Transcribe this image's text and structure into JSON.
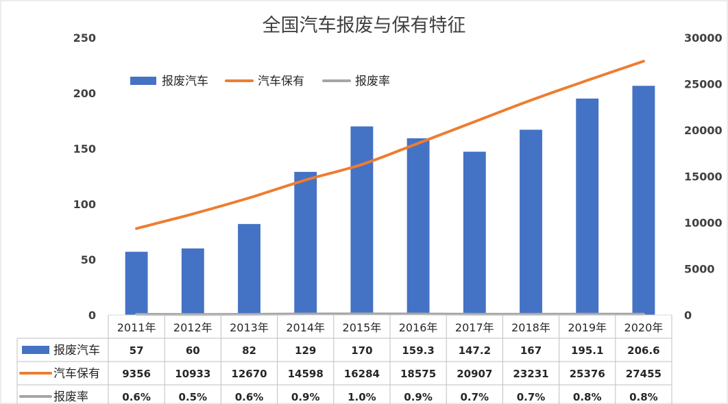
{
  "chart_data": {
    "type": "bar",
    "title": "全国汽车报废与保有特征",
    "categories": [
      "2011年",
      "2012年",
      "2013年",
      "2014年",
      "2015年",
      "2016年",
      "2017年",
      "2018年",
      "2019年",
      "2020年"
    ],
    "series": [
      {
        "name": "报废汽车",
        "kind": "bar",
        "axis": "left",
        "color": "#4472C4",
        "values": [
          57,
          60,
          82,
          129,
          170,
          159.3,
          147.2,
          167,
          195.1,
          206.6
        ],
        "labels": [
          "57",
          "60",
          "82",
          "129",
          "170",
          "159.3",
          "147.2",
          "167",
          "195.1",
          "206.6"
        ]
      },
      {
        "name": "汽车保有",
        "kind": "line",
        "axis": "right",
        "color": "#ED7D31",
        "values": [
          9356,
          10933,
          12670,
          14598,
          16284,
          18575,
          20907,
          23231,
          25376,
          27455
        ],
        "labels": [
          "9356",
          "10933",
          "12670",
          "14598",
          "16284",
          "18575",
          "20907",
          "23231",
          "25376",
          "27455"
        ]
      },
      {
        "name": "报废率",
        "kind": "line",
        "axis": "left",
        "color": "#A5A5A5",
        "values": [
          0.6,
          0.5,
          0.6,
          0.9,
          1.0,
          0.9,
          0.7,
          0.7,
          0.8,
          0.8
        ],
        "labels": [
          "0.6%",
          "0.5%",
          "0.6%",
          "0.9%",
          "1.0%",
          "0.9%",
          "0.7%",
          "0.7%",
          "0.8%",
          "0.8%"
        ]
      }
    ],
    "y_left": {
      "min": 0,
      "max": 250,
      "ticks": [
        "0",
        "50",
        "100",
        "150",
        "200",
        "250"
      ]
    },
    "y_right": {
      "min": 0,
      "max": 30000,
      "ticks": [
        "0",
        "5000",
        "10000",
        "15000",
        "20000",
        "25000",
        "30000"
      ]
    },
    "legend": "top-left",
    "data_table": true,
    "grid": false
  }
}
